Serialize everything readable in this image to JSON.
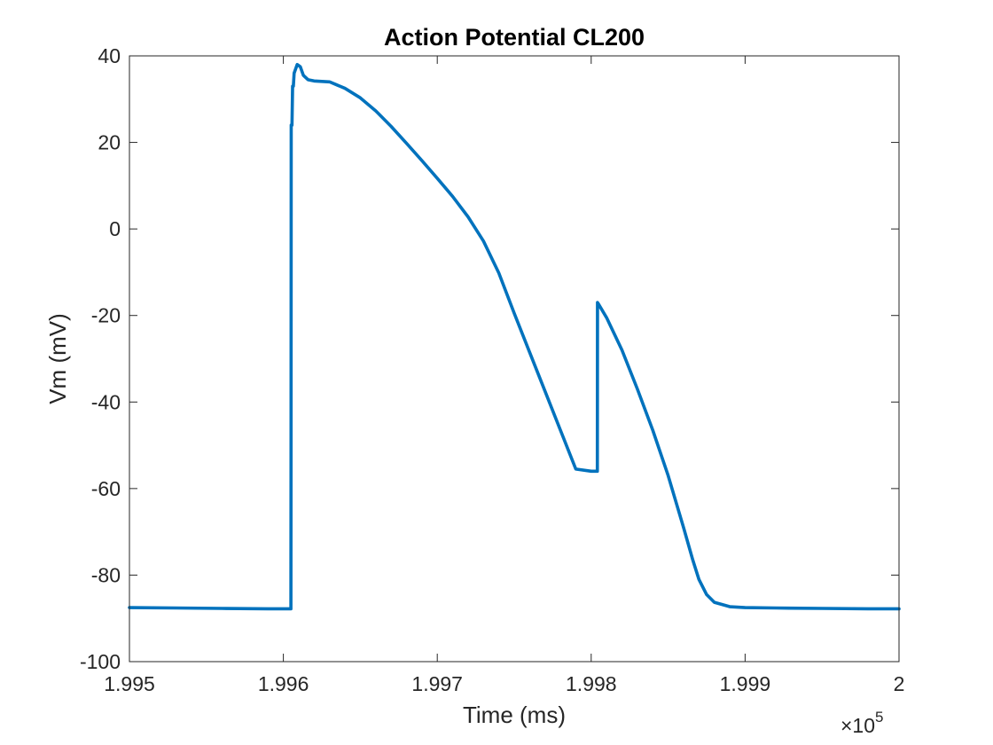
{
  "chart_data": {
    "type": "line",
    "title": "Action Potential CL200",
    "xlabel": "Time (ms)",
    "ylabel": "Vm (mV)",
    "xlim": [
      199500,
      200000
    ],
    "ylim": [
      -100,
      40
    ],
    "x_ticks": [
      199500,
      199600,
      199700,
      199800,
      199900,
      200000
    ],
    "x_tick_labels": [
      "1.995",
      "1.996",
      "1.997",
      "1.998",
      "1.999",
      "2"
    ],
    "x_exponent_label": "×10",
    "x_exponent_power": "5",
    "y_ticks": [
      -100,
      -80,
      -60,
      -40,
      -20,
      0,
      20,
      40
    ],
    "y_tick_labels": [
      "-100",
      "-80",
      "-60",
      "-40",
      "-20",
      "0",
      "20",
      "40"
    ],
    "grid": false,
    "box": true,
    "series": [
      {
        "color": "#0072BD",
        "x": [
          199500,
          199530,
          199560,
          199590,
          199604.9,
          199605,
          199605.1,
          199605.6,
          199606,
          199606.5,
          199607,
          199609,
          199611,
          199613,
          199616,
          199620,
          199630,
          199640,
          199650,
          199660,
          199670,
          199680,
          199690,
          199700,
          199710,
          199720,
          199730,
          199740,
          199750,
          199760,
          199770,
          199780,
          199790,
          199800,
          199804,
          199804.1,
          199805,
          199810,
          199820,
          199830,
          199840,
          199850,
          199860,
          199866,
          199870,
          199875,
          199880,
          199890,
          199900,
          199920,
          199950,
          199980,
          200000
        ],
        "y": [
          -87.5,
          -87.6,
          -87.7,
          -87.8,
          -87.8,
          -48,
          24,
          24,
          33,
          33,
          36,
          38,
          37.5,
          35.5,
          34.5,
          34.2,
          34.0,
          32.5,
          30.3,
          27.3,
          23.7,
          19.8,
          15.8,
          11.7,
          7.5,
          2.8,
          -2.8,
          -10.2,
          -19.5,
          -28.5,
          -37.5,
          -46.5,
          -55.5,
          -56,
          -56,
          -17,
          -17.5,
          -20.5,
          -28,
          -37,
          -46.5,
          -57,
          -69,
          -76.5,
          -81,
          -84.5,
          -86.3,
          -87.3,
          -87.5,
          -87.6,
          -87.7,
          -87.8,
          -87.8
        ]
      }
    ]
  }
}
